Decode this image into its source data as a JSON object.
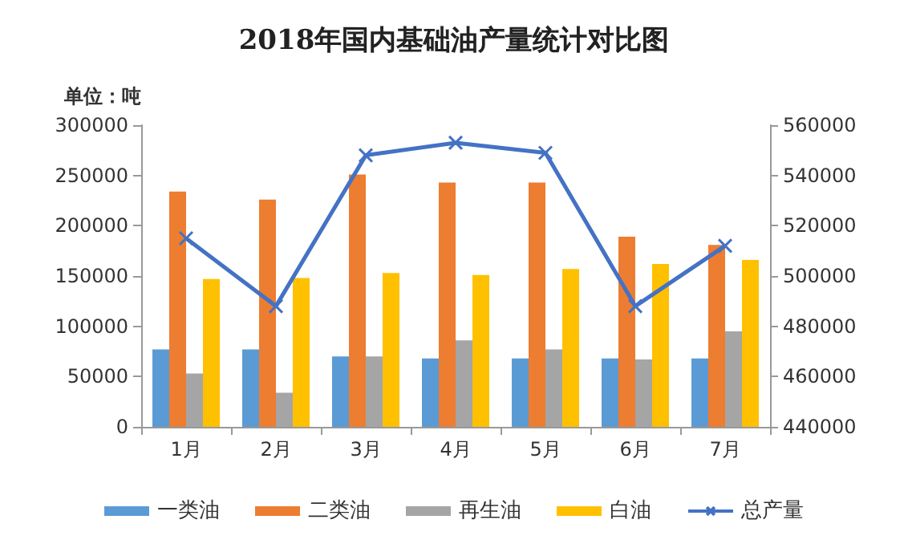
{
  "chart_data": {
    "type": "bar",
    "title": "2018年国内基础油产量统计对比图",
    "ylabel": "单位：吨",
    "categories": [
      "1月",
      "2月",
      "3月",
      "4月",
      "5月",
      "6月",
      "7月"
    ],
    "series": [
      {
        "name": "一类油",
        "color": "#5b9bd5",
        "values": [
          77000,
          77000,
          70000,
          68000,
          68000,
          68000,
          68000
        ]
      },
      {
        "name": "二类油",
        "color": "#ed7d31",
        "values": [
          234000,
          226000,
          251000,
          243000,
          243000,
          189000,
          181000
        ]
      },
      {
        "name": "再生油",
        "color": "#a5a5a5",
        "values": [
          53000,
          34000,
          70000,
          86000,
          77000,
          67000,
          95000
        ]
      },
      {
        "name": "白油",
        "color": "#ffc000",
        "values": [
          147000,
          148000,
          153000,
          151000,
          157000,
          162000,
          166000
        ]
      },
      {
        "name": "总产量",
        "type": "line",
        "axis": "y2",
        "color": "#4472c4",
        "marker": "cross",
        "values": [
          515000,
          488000,
          548000,
          553000,
          549000,
          488000,
          512000
        ]
      }
    ],
    "ylim": [
      0,
      300000
    ],
    "yticks": [
      0,
      50000,
      100000,
      150000,
      200000,
      250000,
      300000
    ],
    "y2lim": [
      440000,
      560000
    ],
    "y2ticks": [
      440000,
      460000,
      480000,
      500000,
      520000,
      540000,
      560000
    ],
    "grid": false,
    "legend": "bottom"
  }
}
